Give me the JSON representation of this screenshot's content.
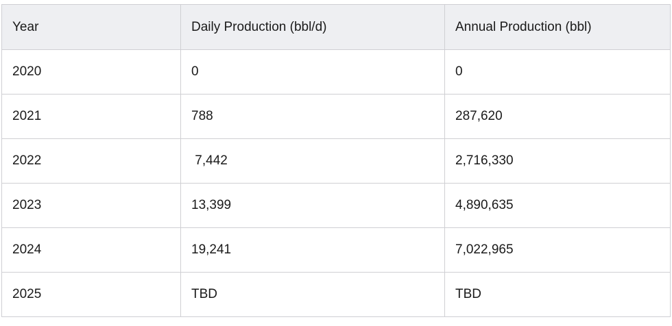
{
  "table": {
    "headers": [
      "Year",
      "Daily Production (bbl/d)",
      "Annual Production (bbl)"
    ],
    "rows": [
      [
        "2020",
        "0",
        "0"
      ],
      [
        "2021",
        "788",
        "287,620"
      ],
      [
        "2022",
        " 7,442",
        "2,716,330"
      ],
      [
        "2023",
        "13,399",
        "4,890,635"
      ],
      [
        "2024",
        "19,241",
        "7,022,965"
      ],
      [
        "2025",
        "TBD",
        "TBD"
      ]
    ]
  },
  "colors": {
    "header_bg": "#eeeff2",
    "border": "#cfcfd3",
    "text": "#1a1a1a"
  }
}
